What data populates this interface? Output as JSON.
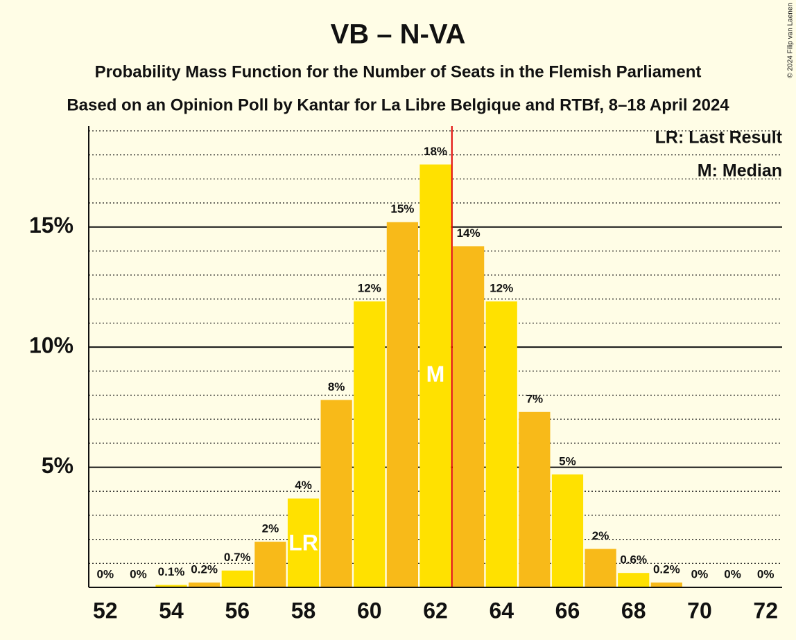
{
  "chart_data": {
    "type": "bar",
    "title": "VB – N-VA",
    "subtitle": "Probability Mass Function for the Number of Seats in the Flemish Parliament",
    "subtitle2": "Based on an Opinion Poll by Kantar for La Libre Belgique and RTBf, 8–18 April 2024",
    "legend": [
      "LR: Last Result",
      "M: Median"
    ],
    "copyright": "© 2024 Filip van Laenen",
    "x": [
      52,
      53,
      54,
      55,
      56,
      57,
      58,
      59,
      60,
      61,
      62,
      63,
      64,
      65,
      66,
      67,
      68,
      69,
      70,
      71,
      72
    ],
    "values": [
      0,
      0,
      0.1,
      0.2,
      0.7,
      1.9,
      3.7,
      7.8,
      11.9,
      15.2,
      17.6,
      14.2,
      11.9,
      7.3,
      4.7,
      1.6,
      0.6,
      0.2,
      0,
      0,
      0
    ],
    "value_labels": [
      "0%",
      "0%",
      "0.1%",
      "0.2%",
      "0.7%",
      "2%",
      "4%",
      "8%",
      "12%",
      "15%",
      "18%",
      "14%",
      "12%",
      "7%",
      "5%",
      "2%",
      "0.6%",
      "0.2%",
      "0%",
      "0%",
      "0%"
    ],
    "colors": [
      "#FFE100",
      "#F8BA19"
    ],
    "xlim": [
      51.5,
      72.5
    ],
    "xticks": [
      52,
      54,
      56,
      58,
      60,
      62,
      64,
      66,
      68,
      70,
      72
    ],
    "ylim": [
      0,
      19.2
    ],
    "yticks": [
      {
        "value": 5,
        "label": "5%"
      },
      {
        "value": 10,
        "label": "10%"
      },
      {
        "value": 15,
        "label": "15%"
      }
    ],
    "minor_yticks": [
      1,
      2,
      3,
      4,
      6,
      7,
      8,
      9,
      11,
      12,
      13,
      14,
      16,
      17,
      18,
      19
    ],
    "last_result": 58,
    "last_result_label": "LR",
    "median": 62,
    "median_label": "M",
    "median_line": 62.5,
    "median_line_color": "#E00000"
  }
}
